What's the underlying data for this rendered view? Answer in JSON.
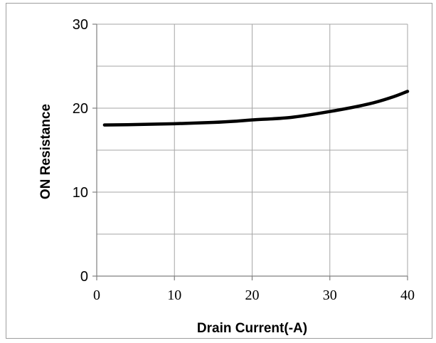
{
  "chart_data": {
    "type": "line",
    "title": "",
    "xlabel": "Drain Current(-A)",
    "ylabel": "ON Resistance",
    "xlim": [
      0,
      40
    ],
    "ylim": [
      0,
      30
    ],
    "x_ticks": [
      0,
      10,
      20,
      30,
      40
    ],
    "y_ticks": [
      0,
      10,
      20,
      30
    ],
    "x_minor_grid": [
      0,
      10,
      20,
      30,
      40
    ],
    "y_minor_grid": [
      0,
      5,
      10,
      15,
      20,
      25,
      30
    ],
    "grid": true,
    "legend": "none",
    "series": [
      {
        "color": "#000000",
        "x": [
          1,
          5,
          10,
          15,
          18,
          20,
          25,
          30,
          35,
          38,
          40
        ],
        "y": [
          18.0,
          18.05,
          18.15,
          18.3,
          18.45,
          18.6,
          18.9,
          19.6,
          20.5,
          21.3,
          22.0
        ]
      }
    ]
  }
}
